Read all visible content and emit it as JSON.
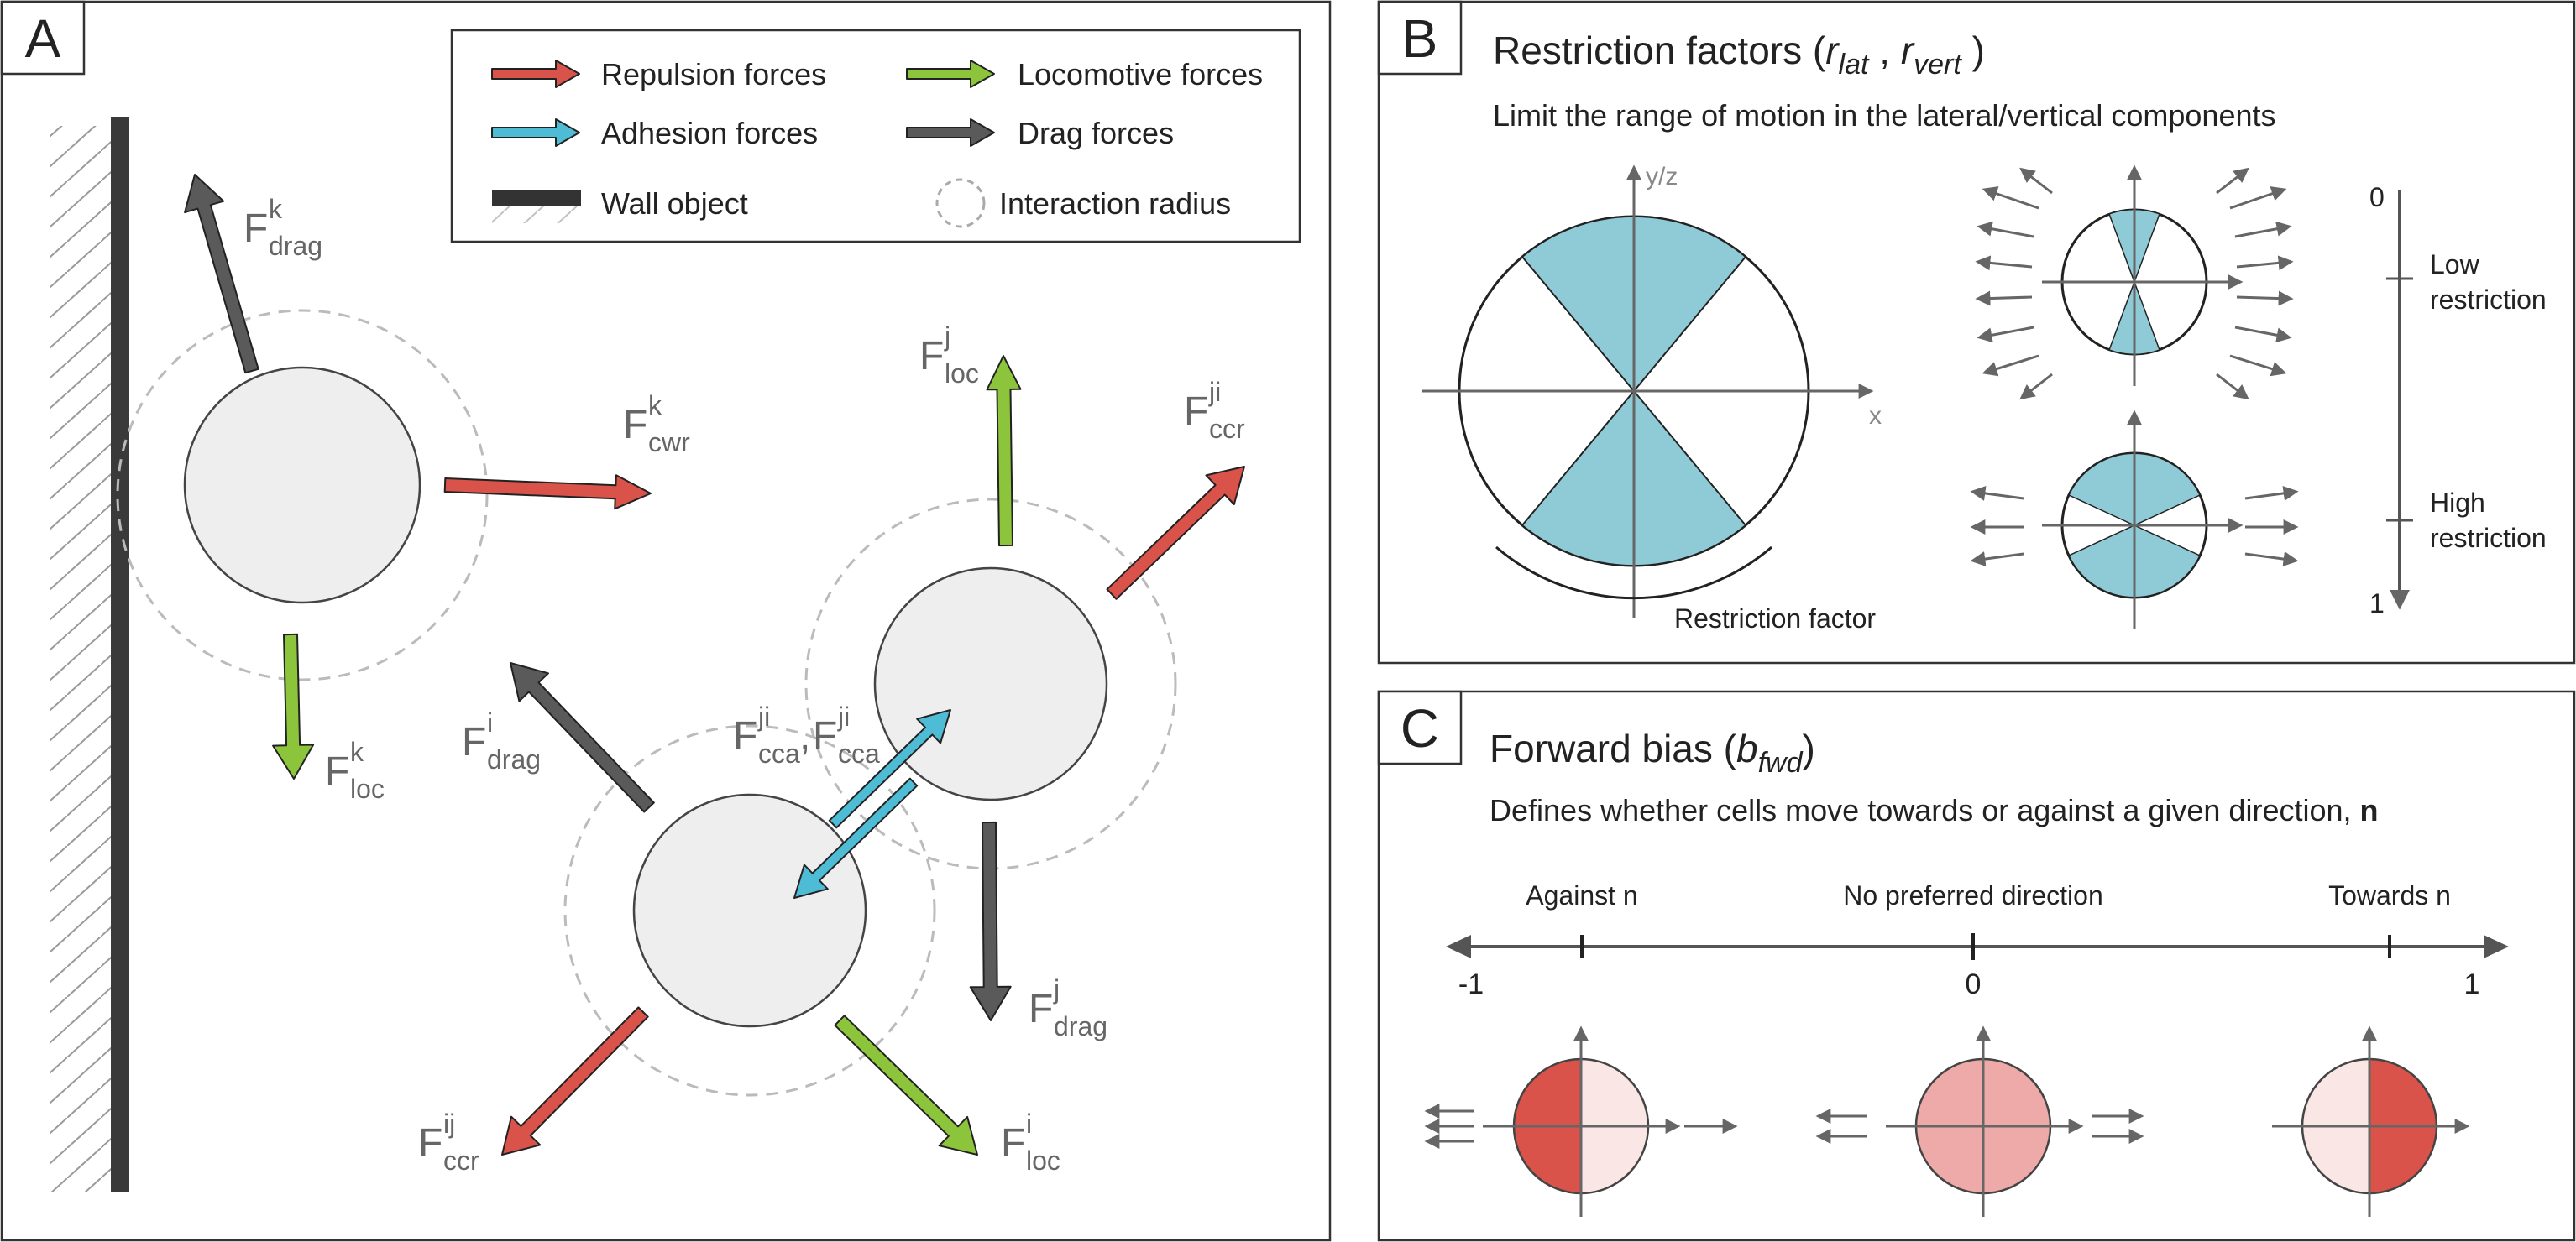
{
  "panels": {
    "a": {
      "letter": "A",
      "legend": {
        "repulsion": "Repulsion forces",
        "adhesion": "Adhesion forces",
        "wall": "Wall object",
        "locomotive": "Locomotive forces",
        "drag": "Drag forces",
        "radius": "Interaction radius"
      },
      "forces": {
        "drag_k": {
          "base": "F",
          "sup": "k",
          "sub": "drag"
        },
        "cwr_k": {
          "base": "F",
          "sup": "k",
          "sub": "cwr"
        },
        "loc_k": {
          "base": "F",
          "sup": "k",
          "sub": "loc"
        },
        "loc_j": {
          "base": "F",
          "sup": "j",
          "sub": "loc"
        },
        "ccr_ji": {
          "base": "F",
          "sup": "ji",
          "sub": "ccr"
        },
        "drag_i": {
          "base": "F",
          "sup": "i",
          "sub": "drag"
        },
        "cca_ji_1": {
          "base": "F",
          "sup": "ji",
          "sub": "cca"
        },
        "cca_ji_2": {
          "base": "F",
          "sup": "ji",
          "sub": "cca"
        },
        "comma": ",",
        "drag_j": {
          "base": "F",
          "sup": "j",
          "sub": "drag"
        },
        "ccr_ij": {
          "base": "F",
          "sup": "ij",
          "sub": "ccr"
        },
        "loc_i": {
          "base": "F",
          "sup": "i",
          "sub": "loc"
        }
      }
    },
    "b": {
      "letter": "B",
      "title_prefix": "Restriction factors (",
      "title_r1": "r",
      "title_r1_sub": "lat",
      "title_sep": " , ",
      "title_r2": "r",
      "title_r2_sub": "vert",
      "title_suffix": " )",
      "subtitle": "Limit the range of motion in the lateral/vertical components",
      "axis_y": "y/z",
      "axis_x": "x",
      "restriction_factor": "Restriction factor",
      "scale_zero": "0",
      "scale_one": "1",
      "low_line1": "Low",
      "low_line2": "restriction",
      "high_line1": "High",
      "high_line2": "restriction"
    },
    "c": {
      "letter": "C",
      "title_prefix": "Forward bias (",
      "title_b": "b",
      "title_b_sub": "fwd",
      "title_suffix": ")",
      "subtitle": "Defines whether cells move towards or against a given direction, ",
      "subtitle_bold": "n",
      "against": "Against n",
      "no_pref": "No preferred direction",
      "towards": "Towards n",
      "tick_neg": "-1",
      "tick_zero": "0",
      "tick_pos": "1"
    }
  },
  "colors": {
    "repulsion": "#d9534a",
    "adhesion": "#4fbcd6",
    "locomotive": "#8cc43c",
    "drag": "#5a5a5a",
    "cell_fill": "#eeeeee",
    "sector": "#8fcbd6",
    "bias_dark": "#d9534a",
    "bias_light": "#fbe6e6",
    "bias_mid": "#eeaaa8"
  }
}
